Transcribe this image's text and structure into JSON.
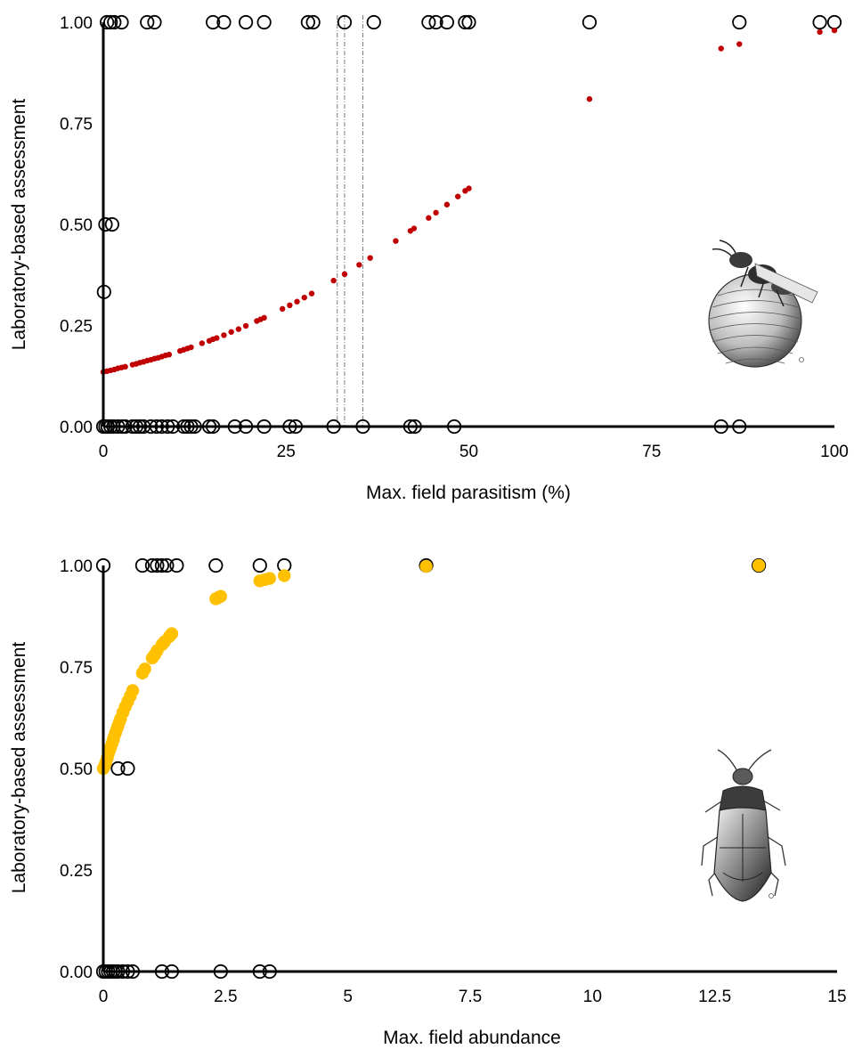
{
  "colors": {
    "axis": "#000000",
    "open_marker": "#000000",
    "fit_parasitism": "#c00000",
    "fit_abundance": "#ffc000",
    "guide_line": "#7a7a7a"
  },
  "icons": [
    "wasp-on-egg-illustration",
    "predatory-bug-illustration"
  ],
  "chart_data": [
    {
      "type": "scatter",
      "title": "",
      "xlabel": "Max. field parasitism (%)",
      "ylabel": "Laboratory-based assessment",
      "xlim": [
        0,
        100
      ],
      "ylim": [
        0,
        1
      ],
      "x_ticks": [
        "0",
        "25",
        "50",
        "75",
        "100"
      ],
      "y_ticks": [
        "0.00",
        "0.25",
        "0.50",
        "0.75",
        "1.00"
      ],
      "grid": false,
      "legend": "none",
      "vertical_guides_x": [
        32,
        33,
        35.5
      ],
      "series": [
        {
          "style": "open-circle",
          "points": [
            [
              0.5,
              1
            ],
            [
              1,
              1
            ],
            [
              1.5,
              1
            ],
            [
              2.5,
              1
            ],
            [
              6,
              1
            ],
            [
              7,
              1
            ],
            [
              15,
              1
            ],
            [
              16.5,
              1
            ],
            [
              19.5,
              1
            ],
            [
              22,
              1
            ],
            [
              28,
              1
            ],
            [
              28.7,
              1
            ],
            [
              33,
              1
            ],
            [
              37,
              1
            ],
            [
              44.5,
              1
            ],
            [
              45.5,
              1
            ],
            [
              47,
              1
            ],
            [
              49.5,
              1
            ],
            [
              50,
              1
            ],
            [
              66.5,
              1
            ],
            [
              87,
              1
            ],
            [
              98,
              1
            ],
            [
              100,
              1
            ],
            [
              0.3,
              0.5
            ],
            [
              1.2,
              0.5
            ],
            [
              0.1,
              0.333
            ],
            [
              0,
              0
            ],
            [
              0.3,
              0
            ],
            [
              0.6,
              0
            ],
            [
              1,
              0
            ],
            [
              1.4,
              0
            ],
            [
              2,
              0
            ],
            [
              2.6,
              0
            ],
            [
              3,
              0
            ],
            [
              4,
              0
            ],
            [
              4.5,
              0
            ],
            [
              5,
              0
            ],
            [
              5.5,
              0
            ],
            [
              6.5,
              0
            ],
            [
              7.3,
              0
            ],
            [
              8,
              0
            ],
            [
              8.8,
              0
            ],
            [
              9.5,
              0
            ],
            [
              11,
              0
            ],
            [
              11.5,
              0
            ],
            [
              12,
              0
            ],
            [
              12.5,
              0
            ],
            [
              14.5,
              0
            ],
            [
              15,
              0
            ],
            [
              18,
              0
            ],
            [
              19.5,
              0
            ],
            [
              22,
              0
            ],
            [
              25.5,
              0
            ],
            [
              26.3,
              0
            ],
            [
              31.5,
              0
            ],
            [
              35.5,
              0
            ],
            [
              42,
              0
            ],
            [
              42.6,
              0
            ],
            [
              48,
              0
            ],
            [
              84.5,
              0
            ],
            [
              87,
              0
            ]
          ]
        },
        {
          "style": "filled-dot",
          "points": [
            [
              0,
              0.135
            ],
            [
              0.5,
              0.137
            ],
            [
              1,
              0.139
            ],
            [
              1.5,
              0.141
            ],
            [
              2,
              0.144
            ],
            [
              2.5,
              0.146
            ],
            [
              3,
              0.148
            ],
            [
              4,
              0.153
            ],
            [
              4.5,
              0.155
            ],
            [
              5,
              0.158
            ],
            [
              5.5,
              0.16
            ],
            [
              6,
              0.163
            ],
            [
              6.5,
              0.165
            ],
            [
              7,
              0.168
            ],
            [
              7.5,
              0.17
            ],
            [
              8,
              0.173
            ],
            [
              8.5,
              0.176
            ],
            [
              9,
              0.178
            ],
            [
              10.5,
              0.187
            ],
            [
              11,
              0.19
            ],
            [
              11.5,
              0.193
            ],
            [
              12,
              0.196
            ],
            [
              13.5,
              0.206
            ],
            [
              14.5,
              0.212
            ],
            [
              15,
              0.216
            ],
            [
              15.5,
              0.219
            ],
            [
              16.5,
              0.226
            ],
            [
              17.5,
              0.234
            ],
            [
              18.5,
              0.241
            ],
            [
              19.5,
              0.249
            ],
            [
              21,
              0.261
            ],
            [
              21.5,
              0.265
            ],
            [
              22,
              0.269
            ],
            [
              24.5,
              0.291
            ],
            [
              25.5,
              0.3
            ],
            [
              26.5,
              0.309
            ],
            [
              27.5,
              0.319
            ],
            [
              28.5,
              0.329
            ],
            [
              31.5,
              0.361
            ],
            [
              33,
              0.377
            ],
            [
              35,
              0.4
            ],
            [
              36.5,
              0.417
            ],
            [
              40,
              0.459
            ],
            [
              42,
              0.484
            ],
            [
              42.5,
              0.49
            ],
            [
              44.5,
              0.516
            ],
            [
              45.5,
              0.529
            ],
            [
              47,
              0.549
            ],
            [
              48.5,
              0.569
            ],
            [
              49.5,
              0.583
            ],
            [
              50,
              0.589
            ],
            [
              66.5,
              0.81
            ],
            [
              84.5,
              0.935
            ],
            [
              87,
              0.946
            ],
            [
              98,
              0.976
            ],
            [
              100,
              0.98
            ]
          ]
        }
      ]
    },
    {
      "type": "scatter",
      "title": "",
      "xlabel": "Max. field abundance",
      "ylabel": "Laboratory-based assessment",
      "xlim": [
        0,
        15
      ],
      "ylim": [
        0,
        1
      ],
      "x_ticks": [
        "0",
        "2.5",
        "5",
        "7.5",
        "10",
        "12.5",
        "15"
      ],
      "y_ticks": [
        "0.00",
        "0.25",
        "0.50",
        "0.75",
        "1.00"
      ],
      "grid": false,
      "legend": "none",
      "series": [
        {
          "style": "open-circle",
          "points": [
            [
              0,
              1
            ],
            [
              0.8,
              1
            ],
            [
              1,
              1
            ],
            [
              1.1,
              1
            ],
            [
              1.2,
              1
            ],
            [
              1.3,
              1
            ],
            [
              1.5,
              1
            ],
            [
              2.3,
              1
            ],
            [
              3.2,
              1
            ],
            [
              3.7,
              1
            ],
            [
              6.6,
              1
            ],
            [
              13.4,
              1
            ],
            [
              0.3,
              0.5
            ],
            [
              0.5,
              0.5
            ],
            [
              0,
              0
            ],
            [
              0.05,
              0
            ],
            [
              0.1,
              0
            ],
            [
              0.15,
              0
            ],
            [
              0.2,
              0
            ],
            [
              0.25,
              0
            ],
            [
              0.3,
              0
            ],
            [
              0.4,
              0
            ],
            [
              0.5,
              0
            ],
            [
              0.6,
              0
            ],
            [
              1.2,
              0
            ],
            [
              1.4,
              0
            ],
            [
              2.4,
              0
            ],
            [
              3.2,
              0
            ],
            [
              3.4,
              0
            ]
          ]
        },
        {
          "style": "filled-dot",
          "points": [
            [
              0,
              0.5
            ],
            [
              0.02,
              0.505
            ],
            [
              0.05,
              0.515
            ],
            [
              0.08,
              0.525
            ],
            [
              0.1,
              0.535
            ],
            [
              0.13,
              0.545
            ],
            [
              0.15,
              0.552
            ],
            [
              0.18,
              0.562
            ],
            [
              0.2,
              0.57
            ],
            [
              0.22,
              0.578
            ],
            [
              0.25,
              0.588
            ],
            [
              0.28,
              0.598
            ],
            [
              0.3,
              0.605
            ],
            [
              0.33,
              0.615
            ],
            [
              0.35,
              0.622
            ],
            [
              0.4,
              0.638
            ],
            [
              0.45,
              0.652
            ],
            [
              0.5,
              0.665
            ],
            [
              0.55,
              0.678
            ],
            [
              0.6,
              0.692
            ],
            [
              0.8,
              0.735
            ],
            [
              0.85,
              0.745
            ],
            [
              1.0,
              0.772
            ],
            [
              1.05,
              0.78
            ],
            [
              1.1,
              0.79
            ],
            [
              1.2,
              0.805
            ],
            [
              1.25,
              0.812
            ],
            [
              1.35,
              0.825
            ],
            [
              1.4,
              0.832
            ],
            [
              2.3,
              0.918
            ],
            [
              2.35,
              0.921
            ],
            [
              2.4,
              0.924
            ],
            [
              3.2,
              0.962
            ],
            [
              3.3,
              0.965
            ],
            [
              3.4,
              0.968
            ],
            [
              3.7,
              0.975
            ],
            [
              6.6,
              0.998
            ],
            [
              13.4,
              1.0
            ]
          ]
        }
      ]
    }
  ]
}
